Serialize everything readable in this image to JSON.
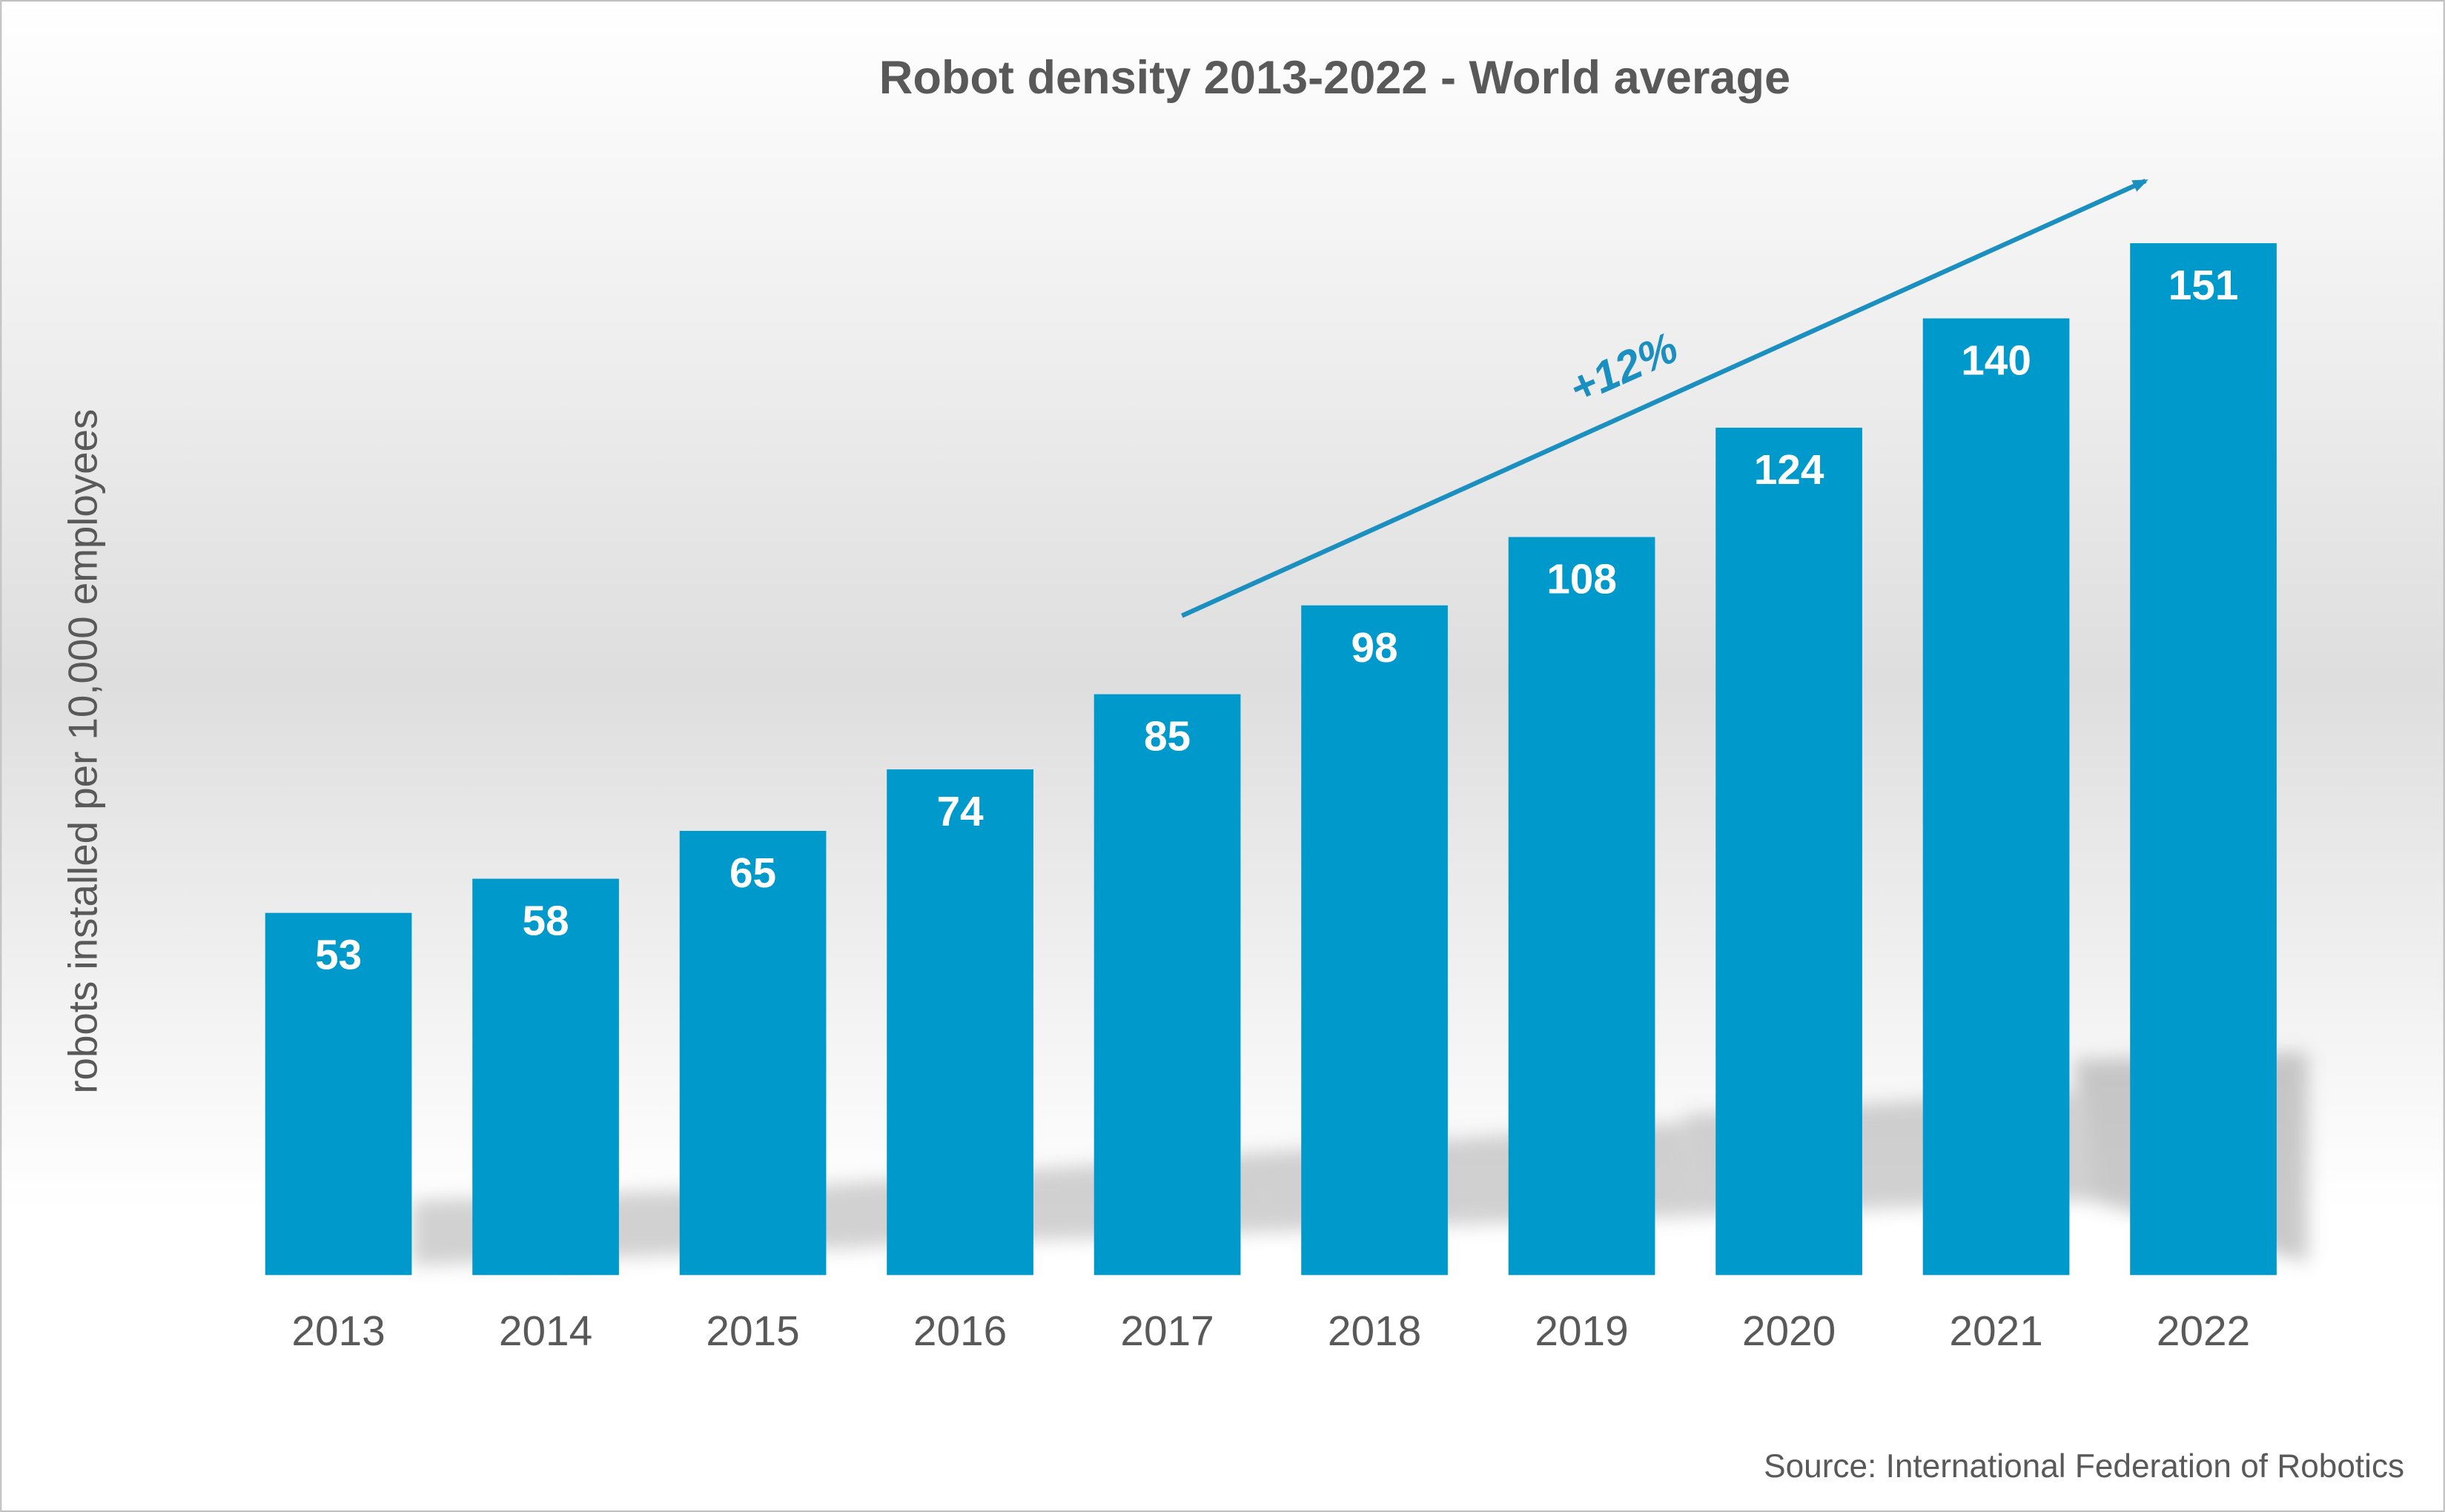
{
  "chart_data": {
    "type": "bar",
    "title": "Robot density 2013-2022 - World average",
    "y_label": "robots installed per 10,000 employees",
    "categories": [
      "2013",
      "2014",
      "2015",
      "2016",
      "2017",
      "2018",
      "2019",
      "2020",
      "2021",
      "2022"
    ],
    "values": [
      53,
      58,
      65,
      74,
      85,
      98,
      108,
      124,
      140,
      151
    ],
    "color": "#0099cc",
    "ylim": [
      0,
      160
    ],
    "annotation": "+12%",
    "source": "Source: International Federation of Robotics"
  }
}
